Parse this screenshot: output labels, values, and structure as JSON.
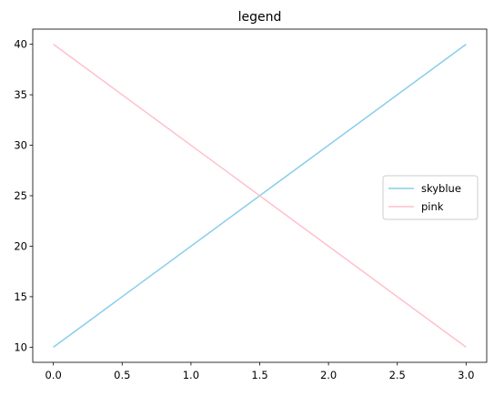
{
  "chart_data": {
    "type": "line",
    "title": "legend",
    "xlabel": "",
    "ylabel": "",
    "xlim": [
      -0.15,
      3.15
    ],
    "ylim": [
      8.5,
      41.5
    ],
    "xticks": [
      0.0,
      0.5,
      1.0,
      1.5,
      2.0,
      2.5,
      3.0
    ],
    "xtick_labels": [
      "0.0",
      "0.5",
      "1.0",
      "1.5",
      "2.0",
      "2.5",
      "3.0"
    ],
    "yticks": [
      10,
      15,
      20,
      25,
      30,
      35,
      40
    ],
    "ytick_labels": [
      "10",
      "15",
      "20",
      "25",
      "30",
      "35",
      "40"
    ],
    "grid": false,
    "legend_position": "center-right",
    "series": [
      {
        "name": "skyblue",
        "color": "#87ceeb",
        "x": [
          0,
          3
        ],
        "y": [
          10,
          40
        ]
      },
      {
        "name": "pink",
        "color": "#ffc0cb",
        "x": [
          0,
          3
        ],
        "y": [
          40,
          10
        ]
      }
    ]
  }
}
